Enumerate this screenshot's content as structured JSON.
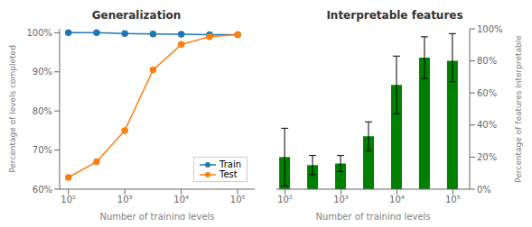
{
  "chart_data": [
    {
      "type": "line",
      "title": "Generalization",
      "x_label": "Number of training levels",
      "y_label": "Percentage of levels completed",
      "x": [
        100,
        316,
        1000,
        3162,
        10000,
        31623,
        100000
      ],
      "series": [
        {
          "name": "Train",
          "color": "#1f77b4",
          "marker": "circle",
          "values": [
            100.0,
            100.0,
            99.8,
            99.7,
            99.6,
            99.5,
            99.5
          ]
        },
        {
          "name": "Test",
          "color": "#ff7f0e",
          "marker": "circle",
          "values": [
            63.0,
            67.0,
            75.0,
            90.5,
            97.0,
            99.0,
            99.5
          ]
        }
      ],
      "log": "x",
      "xlim": [
        70,
        200000
      ],
      "xticks": [
        {
          "value": 100,
          "label": "10²"
        },
        {
          "value": 1000,
          "label": "10³"
        },
        {
          "value": 10000,
          "label": "10⁴"
        },
        {
          "value": 100000,
          "label": "10⁵"
        }
      ],
      "ylim": [
        60,
        101
      ],
      "yticks": [
        {
          "value": 60,
          "label": "60%"
        },
        {
          "value": 70,
          "label": "70%"
        },
        {
          "value": 80,
          "label": "80%"
        },
        {
          "value": 90,
          "label": "90%"
        },
        {
          "value": 100,
          "label": "100%"
        }
      ],
      "legend": "lower right"
    },
    {
      "type": "bar",
      "title": "Interpretable features",
      "x_label": "Number of training levels",
      "y_label": "Percentage of features interpretable",
      "x": [
        100,
        316,
        1000,
        3162,
        10000,
        31623,
        100000
      ],
      "values": [
        0.2,
        0.15,
        0.16,
        0.33,
        0.65,
        0.82,
        0.8
      ],
      "errors_low": [
        0.18,
        0.06,
        0.05,
        0.09,
        0.18,
        0.13,
        0.13
      ],
      "errors_high": [
        0.18,
        0.06,
        0.05,
        0.09,
        0.18,
        0.13,
        0.17
      ],
      "color": "#008000",
      "log": "x",
      "xlim": [
        70,
        200000
      ],
      "xticks": [
        {
          "value": 100,
          "label": "10²"
        },
        {
          "value": 1000,
          "label": "10³"
        },
        {
          "value": 10000,
          "label": "10⁴"
        },
        {
          "value": 100000,
          "label": "10⁵"
        }
      ],
      "ylim": [
        0,
        1.0
      ],
      "yticks": [
        {
          "value": 0.0,
          "label": "0%"
        },
        {
          "value": 0.2,
          "label": "20%"
        },
        {
          "value": 0.4,
          "label": "40%"
        },
        {
          "value": 0.6,
          "label": "60%"
        },
        {
          "value": 0.8,
          "label": "80%"
        },
        {
          "value": 1.0,
          "label": "100%"
        }
      ]
    }
  ]
}
